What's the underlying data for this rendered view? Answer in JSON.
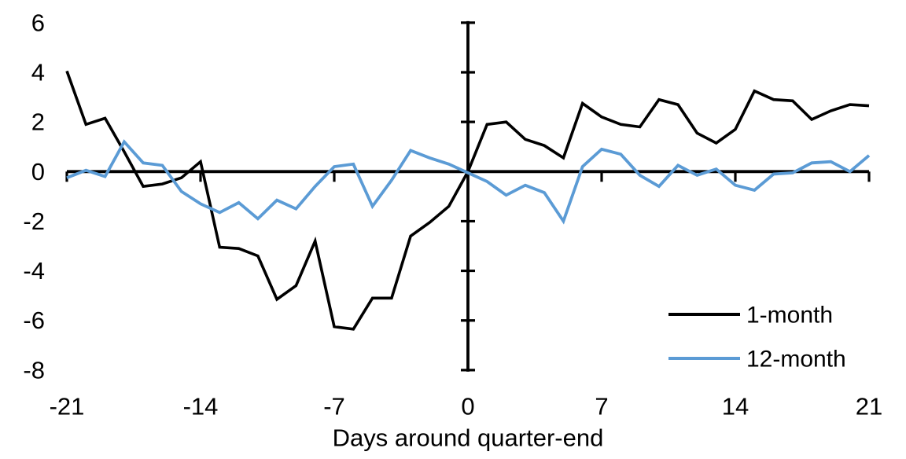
{
  "chart_data": {
    "type": "line",
    "title": "",
    "xlabel": "Days around quarter-end",
    "ylabel": "",
    "xlim": [
      -21,
      21
    ],
    "ylim": [
      -8,
      6
    ],
    "x_ticks": [
      -21,
      -14,
      -7,
      0,
      7,
      14,
      21
    ],
    "y_ticks": [
      6,
      4,
      2,
      0,
      -2,
      -4,
      -6,
      -8
    ],
    "grid": false,
    "legend_position": "inside-bottom-right",
    "axis_color": "#000000",
    "x": [
      -21,
      -20,
      -19,
      -18,
      -17,
      -16,
      -15,
      -14,
      -13,
      -12,
      -11,
      -10,
      -9,
      -8,
      -7,
      -6,
      -5,
      -4,
      -3,
      -2,
      -1,
      0,
      1,
      2,
      3,
      4,
      5,
      6,
      7,
      8,
      9,
      10,
      11,
      12,
      13,
      14,
      15,
      16,
      17,
      18,
      19,
      20,
      21
    ],
    "series": [
      {
        "name": "1-month",
        "color": "#000000",
        "values": [
          4.05,
          1.9,
          2.15,
          0.8,
          -0.6,
          -0.5,
          -0.25,
          0.4,
          -3.05,
          -3.1,
          -3.4,
          -5.15,
          -4.6,
          -2.8,
          -6.25,
          -6.35,
          -5.1,
          -5.1,
          -2.6,
          -2.05,
          -1.4,
          0.0,
          1.9,
          2.0,
          1.3,
          1.05,
          0.55,
          2.75,
          2.2,
          1.9,
          1.8,
          2.9,
          2.7,
          1.55,
          1.15,
          1.7,
          3.25,
          2.9,
          2.85,
          2.1,
          2.45,
          2.7,
          2.65
        ]
      },
      {
        "name": "12-month",
        "color": "#5B9BD5",
        "values": [
          -0.25,
          0.05,
          -0.2,
          1.2,
          0.35,
          0.25,
          -0.8,
          -1.3,
          -1.65,
          -1.25,
          -1.9,
          -1.15,
          -1.5,
          -0.6,
          0.2,
          0.3,
          -1.4,
          -0.35,
          0.85,
          0.55,
          0.3,
          -0.05,
          -0.4,
          -0.95,
          -0.55,
          -0.85,
          -2.0,
          0.2,
          0.9,
          0.7,
          -0.15,
          -0.6,
          0.25,
          -0.15,
          0.1,
          -0.55,
          -0.75,
          -0.1,
          -0.05,
          0.35,
          0.4,
          0.0,
          0.65
        ]
      }
    ]
  }
}
